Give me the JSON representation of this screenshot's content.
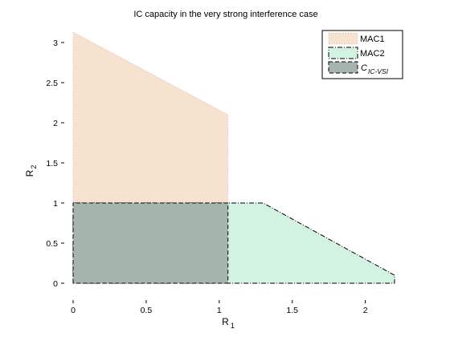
{
  "chart_data": {
    "type": "area",
    "title": "IC capacity in the very strong interference case",
    "xlabel_main": "R",
    "xlabel_sub": "1",
    "ylabel_main": "R",
    "ylabel_sub": "2",
    "xlim": [
      0,
      2.2
    ],
    "ylim": [
      -0.1,
      3.2
    ],
    "x_ticks": [
      0,
      0.5,
      1,
      1.5,
      2
    ],
    "x_tick_labels": [
      "0",
      "0.5",
      "1",
      "1.5",
      "2"
    ],
    "y_ticks": [
      0,
      0.5,
      1,
      1.5,
      2,
      2.5,
      3
    ],
    "y_tick_labels": [
      "0",
      "0.5",
      "1",
      "1.5",
      "2",
      "2.5",
      "3"
    ],
    "grid": false,
    "legend_position": "top-right",
    "series": [
      {
        "name": "MAC1",
        "color": "#f5e3cf",
        "edge_color": "#e6b8b8",
        "line_style": "dotted",
        "x": [
          0,
          0,
          1.06,
          1.06,
          0
        ],
        "y": [
          0,
          3.13,
          2.1,
          0,
          0
        ]
      },
      {
        "name": "MAC2",
        "color": "#d2f2e2",
        "edge_color": "#000000",
        "line_style": "dashdot",
        "x": [
          0,
          0,
          1.3,
          2.2,
          2.2,
          0
        ],
        "y": [
          0,
          1,
          1,
          0.1,
          0,
          0
        ]
      },
      {
        "name_main": "C",
        "name_sub": "IC-VSI",
        "color": "#a6b4ae",
        "edge_color": "#000000",
        "line_style": "dashed",
        "x": [
          0,
          0,
          1.06,
          1.06,
          0
        ],
        "y": [
          0,
          1,
          1,
          0,
          0
        ]
      }
    ]
  }
}
